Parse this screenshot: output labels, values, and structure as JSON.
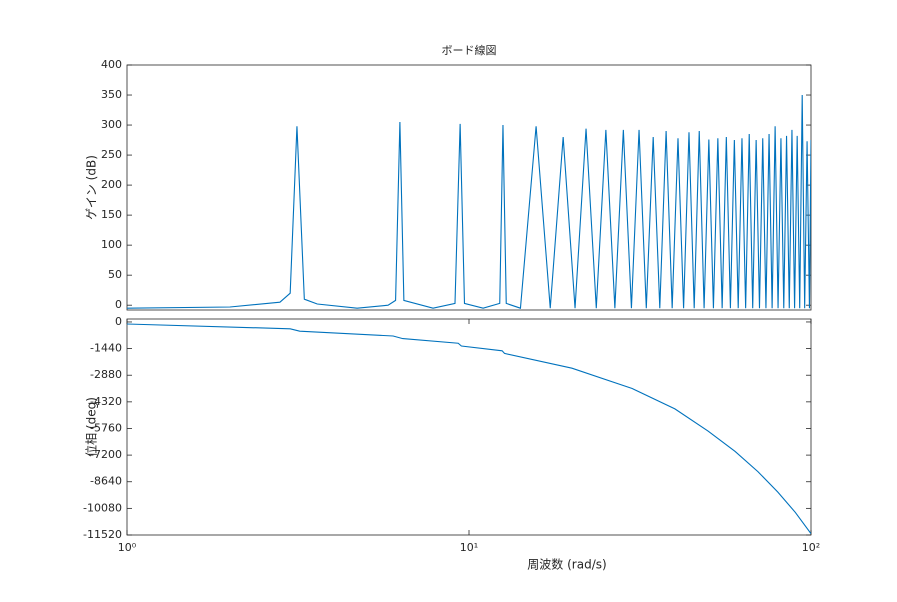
{
  "chart_data": [
    {
      "type": "line",
      "title": "ボード線図",
      "ylabel": "ゲイン (dB)",
      "color": "#0072bd",
      "x": [
        1,
        2,
        2.8,
        3.0,
        3.14,
        3.3,
        3.6,
        4.71,
        5.8,
        6.1,
        6.28,
        6.45,
        7.85,
        9.1,
        9.42,
        9.7,
        11.0,
        12.3,
        12.57,
        12.85,
        14.14,
        15.71,
        17.28,
        18.85,
        20.42,
        21.99,
        23.56,
        25.13,
        26.7,
        28.27,
        29.85,
        31.42,
        32.99,
        34.56,
        36.13,
        37.7,
        39.27,
        40.84,
        42.41,
        43.98,
        45.55,
        47.12,
        48.69,
        50.27,
        51.84,
        53.41,
        54.98,
        56.55,
        58.12,
        59.69,
        61.26,
        62.83,
        64.4,
        65.97,
        67.54,
        69.12,
        70.69,
        72.26,
        73.83,
        75.4,
        76.97,
        78.54,
        80.11,
        81.68,
        83.25,
        84.82,
        86.39,
        87.96,
        89.54,
        91.11,
        92.68,
        94.25,
        95.82,
        97.39,
        98.96,
        100
      ],
      "values": [
        -5,
        -3,
        5,
        20,
        298,
        10,
        2,
        -5,
        0,
        8,
        305,
        8,
        -5,
        3,
        302,
        3,
        -5,
        3,
        300,
        3,
        -5,
        298,
        -5,
        280,
        -5,
        294,
        -5,
        292,
        -5,
        292,
        -5,
        292,
        -5,
        280,
        -5,
        290,
        -5,
        278,
        -5,
        288,
        -5,
        290,
        -5,
        276,
        -5,
        278,
        -5,
        280,
        -5,
        275,
        -5,
        278,
        -5,
        285,
        -5,
        275,
        -5,
        278,
        -5,
        285,
        -5,
        298,
        -5,
        278,
        -5,
        282,
        -5,
        292,
        -5,
        282,
        -5,
        350,
        -5,
        273,
        -5,
        275
      ],
      "xlim": [
        1,
        100
      ],
      "ylim": [
        -8,
        400
      ],
      "yticks": [
        0,
        50,
        100,
        150,
        200,
        250,
        300,
        350,
        400
      ]
    },
    {
      "type": "line",
      "ylabel": "位相 (deg)",
      "xlabel": "周波数 (rad/s)",
      "color": "#0072bd",
      "x": [
        1,
        3,
        3.2,
        6,
        6.4,
        9.3,
        9.5,
        12.5,
        12.7,
        20,
        30,
        40,
        50,
        60,
        70,
        80,
        90,
        100
      ],
      "values": [
        -110,
        -370,
        -500,
        -760,
        -900,
        -1150,
        -1300,
        -1560,
        -1700,
        -2500,
        -3600,
        -4700,
        -5900,
        -7000,
        -8100,
        -9200,
        -10300,
        -11450
      ],
      "xlim": [
        1,
        100
      ],
      "xticks": [
        {
          "value": 1,
          "label": "10⁰"
        },
        {
          "value": 10,
          "label": "10¹"
        },
        {
          "value": 100,
          "label": "10²"
        }
      ],
      "ylim": [
        -11520,
        160
      ],
      "yticks": [
        0,
        -1440,
        -2880,
        -4320,
        -5760,
        -7200,
        -8640,
        -10080,
        -11520
      ]
    }
  ]
}
